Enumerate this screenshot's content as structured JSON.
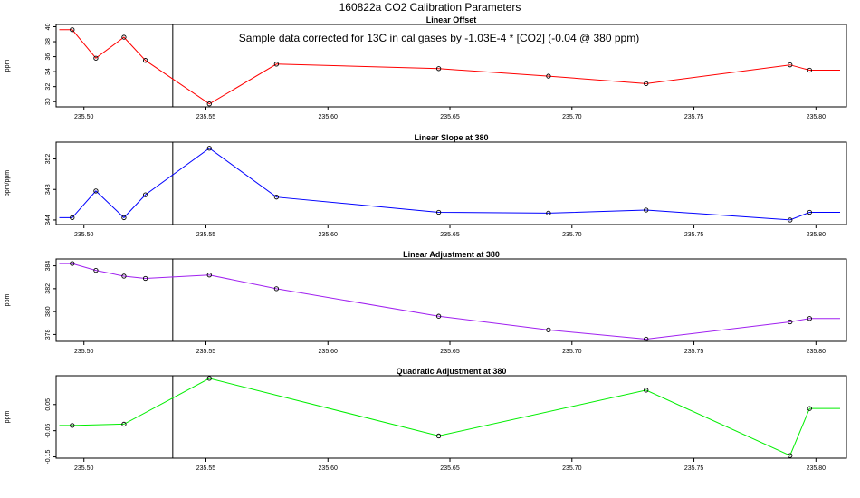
{
  "page": {
    "title": "160822a   CO2 Calibration Parameters",
    "note": "Sample data corrected for 13C in cal gases by -1.03E-4 * [CO2] (-0.04 @ 380 ppm)"
  },
  "chart_data": [
    {
      "type": "line",
      "title": "Linear Offset",
      "ylabel": "ppm",
      "xlim": [
        235.4886,
        235.8125
      ],
      "ylim": [
        29.3,
        40.3
      ],
      "xticks": [
        "235.50",
        "235.55",
        "235.60",
        "235.65",
        "235.70",
        "235.75",
        "235.80"
      ],
      "yticks": [
        "30",
        "32",
        "34",
        "36",
        "38",
        "40"
      ],
      "vline_x": 235.5364,
      "color": "#ff0000",
      "x": [
        235.4952,
        235.5049,
        235.5164,
        235.5252,
        235.5514,
        235.5789,
        235.6454,
        235.6904,
        235.7304,
        235.7894,
        235.7974
      ],
      "y": [
        39.6,
        35.8,
        38.6,
        35.5,
        29.7,
        35.0,
        34.4,
        33.4,
        32.4,
        34.9,
        34.2
      ],
      "line_start": [
        235.4899,
        39.6
      ],
      "line_end": [
        235.8099,
        34.2
      ]
    },
    {
      "type": "line",
      "title": "Linear Slope at 380",
      "ylabel": "ppm/ppm",
      "xlim": [
        235.4886,
        235.8125
      ],
      "ylim": [
        343.4,
        354.2
      ],
      "xticks": [
        "235.50",
        "235.55",
        "235.60",
        "235.65",
        "235.70",
        "235.75",
        "235.80"
      ],
      "yticks": [
        "344",
        "348",
        "352"
      ],
      "vline_x": 235.5364,
      "color": "#0000ff",
      "x": [
        235.4952,
        235.5049,
        235.5164,
        235.5252,
        235.5514,
        235.5789,
        235.6454,
        235.6904,
        235.7304,
        235.7894,
        235.7974
      ],
      "y": [
        344.3,
        347.8,
        344.3,
        347.3,
        353.4,
        347.0,
        345.0,
        344.9,
        345.3,
        344.0,
        345.0
      ],
      "line_start": [
        235.4899,
        344.3
      ],
      "line_end": [
        235.8099,
        345.0
      ]
    },
    {
      "type": "line",
      "title": "Linear Adjustment at 380",
      "ylabel": "ppm",
      "xlim": [
        235.4886,
        235.8125
      ],
      "ylim": [
        377.4,
        384.6
      ],
      "xticks": [
        "235.50",
        "235.55",
        "235.60",
        "235.65",
        "235.70",
        "235.75",
        "235.80"
      ],
      "yticks": [
        "378",
        "380",
        "382",
        "384"
      ],
      "vline_x": 235.5364,
      "color": "#a020f0",
      "x": [
        235.4952,
        235.5049,
        235.5164,
        235.5252,
        235.5514,
        235.5789,
        235.6454,
        235.6904,
        235.7304,
        235.7894,
        235.7974
      ],
      "y": [
        384.2,
        383.6,
        383.1,
        382.9,
        383.2,
        382.0,
        379.6,
        378.4,
        377.6,
        379.1,
        379.4
      ],
      "line_start": [
        235.4899,
        384.2
      ],
      "line_end": [
        235.8099,
        379.4
      ]
    },
    {
      "type": "line",
      "title": "Quadratic Adjustment at 380",
      "ylabel": "ppm",
      "xlim": [
        235.4886,
        235.8125
      ],
      "ylim": [
        -0.155,
        0.16
      ],
      "xticks": [
        "235.50",
        "235.55",
        "235.60",
        "235.65",
        "235.70",
        "235.75",
        "235.80"
      ],
      "yticks": [
        "-0.15",
        "-0.05",
        "0.05"
      ],
      "vline_x": 235.5364,
      "color": "#00ee00",
      "x": [
        235.4952,
        235.5164,
        235.5514,
        235.6454,
        235.7304,
        235.7894,
        235.7974
      ],
      "y": [
        -0.03,
        -0.025,
        0.15,
        -0.07,
        0.105,
        -0.145,
        0.035
      ],
      "line_start": [
        235.4899,
        -0.03
      ],
      "line_end": [
        235.8099,
        0.035
      ]
    }
  ]
}
